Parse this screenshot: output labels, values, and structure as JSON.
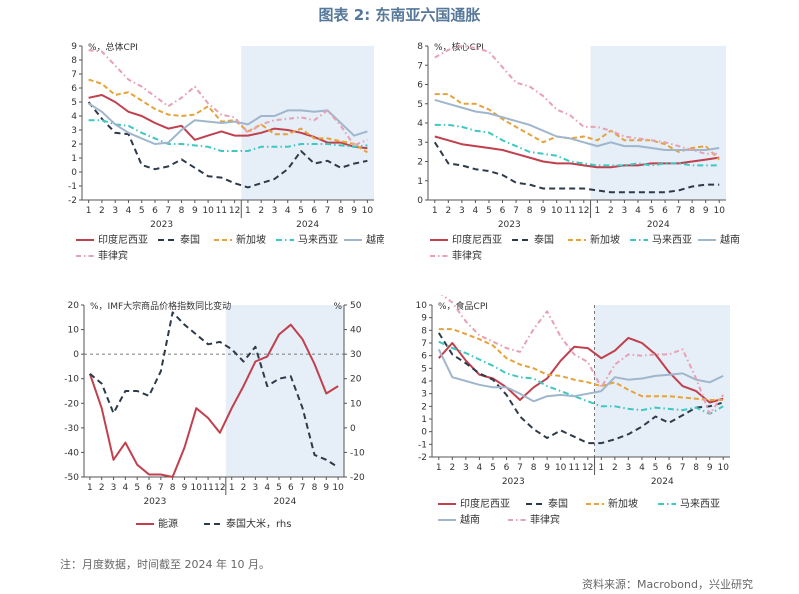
{
  "figure_title": "图表 2: 东南亚六国通胀",
  "note": "注：月度数据，时间截至 2024 年 10 月。",
  "source": "资料来源：Macrobond，兴业研究",
  "colors": {
    "indonesia": "#c0404d",
    "thailand": "#2d3a4a",
    "singapore": "#e6a23c",
    "malaysia": "#40c7c0",
    "vietnam": "#9fb6cc",
    "philippines": "#e6a1b4",
    "energy": "#c0404d",
    "rice": "#2d3a4a",
    "shade": "#e6eef7"
  },
  "chart_data": [
    {
      "type": "line",
      "title": "%，总体CPI",
      "x_ticks": [
        "1",
        "2",
        "3",
        "4",
        "5",
        "6",
        "7",
        "8",
        "9",
        "10",
        "11",
        "12",
        "1",
        "2",
        "3",
        "4",
        "5",
        "6",
        "7",
        "8",
        "9",
        "10"
      ],
      "year_labels": [
        "2023",
        "2024"
      ],
      "ylim": [
        -2,
        9
      ],
      "y_ticks": [
        -2,
        -1,
        0,
        1,
        2,
        3,
        4,
        5,
        6,
        7,
        8,
        9
      ],
      "shade_from_index": 12,
      "series": [
        {
          "name": "印度尼西亚",
          "key": "indonesia",
          "values": [
            5.3,
            5.5,
            5.0,
            4.3,
            4.0,
            3.5,
            3.1,
            3.3,
            2.3,
            2.6,
            2.9,
            2.6,
            2.6,
            2.8,
            3.1,
            3.0,
            2.8,
            2.5,
            2.1,
            2.1,
            1.8,
            1.7
          ]
        },
        {
          "name": "泰国",
          "key": "thailand",
          "values": [
            5.0,
            3.8,
            2.8,
            2.7,
            0.5,
            0.2,
            0.4,
            0.9,
            0.3,
            -0.3,
            -0.4,
            -0.8,
            -1.1,
            -0.8,
            -0.5,
            0.2,
            1.5,
            0.6,
            0.8,
            0.3,
            0.6,
            0.8
          ]
        },
        {
          "name": "新加坡",
          "key": "singapore",
          "values": [
            6.6,
            6.3,
            5.5,
            5.7,
            5.1,
            4.5,
            4.1,
            4.0,
            4.1,
            4.7,
            3.6,
            3.7,
            2.9,
            3.4,
            2.7,
            2.7,
            3.1,
            2.4,
            2.4,
            2.2,
            2.0,
            1.4
          ]
        },
        {
          "name": "马来西亚",
          "key": "malaysia",
          "values": [
            3.7,
            3.7,
            3.4,
            3.3,
            2.8,
            2.4,
            2.0,
            2.0,
            1.9,
            1.8,
            1.5,
            1.5,
            1.5,
            1.8,
            1.8,
            1.8,
            2.0,
            2.0,
            2.0,
            1.9,
            1.8,
            1.9
          ]
        },
        {
          "name": "越南",
          "key": "vietnam",
          "values": [
            4.9,
            4.3,
            3.4,
            2.8,
            2.4,
            2.0,
            2.1,
            3.0,
            3.7,
            3.6,
            3.5,
            3.6,
            3.4,
            4.0,
            4.0,
            4.4,
            4.4,
            4.3,
            4.4,
            3.5,
            2.6,
            2.9
          ]
        },
        {
          "name": "菲律宾",
          "key": "philippines",
          "values": [
            8.7,
            8.6,
            7.6,
            6.6,
            6.1,
            5.4,
            4.7,
            5.3,
            6.1,
            4.9,
            4.1,
            3.9,
            2.8,
            3.4,
            3.7,
            3.8,
            3.9,
            3.7,
            4.4,
            3.3,
            1.9,
            2.3
          ]
        }
      ]
    },
    {
      "type": "line",
      "title": "%，核心CPI",
      "x_ticks": [
        "1",
        "2",
        "3",
        "4",
        "5",
        "6",
        "7",
        "8",
        "9",
        "10",
        "11",
        "12",
        "1",
        "2",
        "3",
        "4",
        "5",
        "6",
        "7",
        "8",
        "9",
        "10"
      ],
      "year_labels": [
        "2023",
        "2024"
      ],
      "ylim": [
        0,
        8
      ],
      "y_ticks": [
        0,
        1,
        2,
        3,
        4,
        5,
        6,
        7,
        8
      ],
      "shade_from_index": 12,
      "series": [
        {
          "name": "印度尼西亚",
          "key": "indonesia",
          "values": [
            3.3,
            3.1,
            2.9,
            2.8,
            2.7,
            2.6,
            2.4,
            2.2,
            2.0,
            1.9,
            1.9,
            1.8,
            1.7,
            1.7,
            1.8,
            1.8,
            1.9,
            1.9,
            1.9,
            2.0,
            2.1,
            2.2
          ]
        },
        {
          "name": "泰国",
          "key": "thailand",
          "values": [
            3.0,
            1.9,
            1.8,
            1.6,
            1.5,
            1.3,
            0.9,
            0.8,
            0.6,
            0.6,
            0.6,
            0.6,
            0.5,
            0.4,
            0.4,
            0.4,
            0.4,
            0.4,
            0.5,
            0.7,
            0.8,
            0.8
          ]
        },
        {
          "name": "新加坡",
          "key": "singapore",
          "values": [
            5.5,
            5.5,
            5.0,
            5.0,
            4.7,
            4.2,
            3.8,
            3.4,
            3.0,
            3.3,
            3.2,
            3.3,
            3.1,
            3.6,
            3.1,
            3.1,
            3.1,
            2.9,
            2.5,
            2.7,
            2.8,
            2.1
          ]
        },
        {
          "name": "马来西亚",
          "key": "malaysia",
          "values": [
            3.9,
            3.9,
            3.8,
            3.6,
            3.5,
            3.1,
            2.8,
            2.5,
            2.4,
            2.3,
            2.0,
            1.9,
            1.8,
            1.8,
            1.8,
            1.9,
            1.8,
            1.9,
            1.9,
            1.8,
            1.8,
            1.8
          ]
        },
        {
          "name": "越南",
          "key": "vietnam",
          "values": [
            5.2,
            5.0,
            4.8,
            4.6,
            4.5,
            4.3,
            4.1,
            3.9,
            3.6,
            3.3,
            3.2,
            3.0,
            2.8,
            3.0,
            2.8,
            2.8,
            2.7,
            2.6,
            2.6,
            2.6,
            2.6,
            2.7
          ]
        },
        {
          "name": "菲律宾",
          "key": "philippines",
          "values": [
            7.4,
            7.8,
            8.0,
            7.9,
            7.7,
            6.9,
            6.1,
            5.9,
            5.4,
            4.7,
            4.4,
            3.8,
            3.8,
            3.6,
            3.3,
            3.2,
            3.1,
            3.0,
            2.8,
            2.6,
            2.4,
            2.4
          ]
        }
      ]
    },
    {
      "type": "line",
      "title": "%，IMF大宗商品价格指数同比变动",
      "rhs_label": "%",
      "x_ticks": [
        "1",
        "2",
        "3",
        "4",
        "5",
        "6",
        "7",
        "8",
        "9",
        "10",
        "11",
        "12",
        "1",
        "2",
        "3",
        "4",
        "5",
        "6",
        "7",
        "8",
        "9",
        "10"
      ],
      "year_labels": [
        "2023",
        "2024"
      ],
      "ylim": [
        -50,
        20
      ],
      "y_ticks": [
        20,
        10,
        0,
        -10,
        -20,
        -30,
        -40,
        -50
      ],
      "ylim_rhs": [
        -20,
        50
      ],
      "y_ticks_rhs": [
        50,
        40,
        30,
        20,
        10,
        0,
        -10,
        -20
      ],
      "zero_line": 0,
      "shade_from_index": 12,
      "series": [
        {
          "name": "能源",
          "key": "energy",
          "axis": "left",
          "values": [
            -8,
            -22,
            -43,
            -36,
            -45,
            -49,
            -49,
            -50,
            -38,
            -22,
            -26,
            -32,
            -22,
            -13,
            -3,
            -1,
            8,
            12,
            6,
            -4,
            -16,
            -13
          ]
        },
        {
          "name": "泰国大米，rhs",
          "key": "rice",
          "axis": "right",
          "values": [
            22,
            18,
            6,
            15,
            15,
            13,
            23,
            47,
            42,
            38,
            34,
            35,
            32,
            27,
            33,
            17,
            20,
            21,
            8,
            -11,
            -13,
            -16
          ]
        }
      ]
    },
    {
      "type": "line",
      "title": "%，食品CPI",
      "x_ticks": [
        "1",
        "2",
        "3",
        "4",
        "5",
        "6",
        "7",
        "8",
        "9",
        "10",
        "11",
        "12",
        "1",
        "2",
        "3",
        "4",
        "5",
        "6",
        "7",
        "8",
        "9",
        "10"
      ],
      "year_labels": [
        "2023",
        "2024"
      ],
      "ylim": [
        -2,
        10
      ],
      "y_ticks": [
        -2,
        -1,
        0,
        1,
        2,
        3,
        4,
        5,
        6,
        7,
        8,
        9,
        10
      ],
      "vline_index": 11,
      "shade_from_index": 12,
      "series": [
        {
          "name": "印度尼西亚",
          "key": "indonesia",
          "values": [
            5.8,
            7.0,
            5.6,
            4.5,
            4.2,
            3.5,
            2.5,
            3.5,
            4.2,
            5.6,
            6.7,
            6.6,
            5.8,
            6.4,
            7.4,
            7.0,
            6.1,
            4.7,
            3.6,
            3.2,
            2.3,
            2.6
          ]
        },
        {
          "name": "泰国",
          "key": "thailand",
          "values": [
            7.8,
            6.1,
            5.4,
            4.6,
            4.1,
            2.9,
            1.2,
            0.2,
            -0.5,
            0.1,
            -0.4,
            -0.9,
            -0.9,
            -0.6,
            -0.2,
            0.4,
            1.2,
            0.7,
            1.3,
            1.9,
            2.0,
            2.3
          ]
        },
        {
          "name": "新加坡",
          "key": "singapore",
          "values": [
            8.1,
            8.1,
            7.7,
            7.3,
            6.8,
            5.8,
            5.3,
            5.0,
            4.5,
            4.4,
            4.1,
            3.9,
            3.6,
            3.9,
            3.3,
            2.8,
            2.8,
            2.8,
            2.7,
            2.6,
            2.5,
            2.5
          ]
        },
        {
          "name": "马来西亚",
          "key": "malaysia",
          "values": [
            7.1,
            6.6,
            6.2,
            5.7,
            5.2,
            4.6,
            4.3,
            4.2,
            3.6,
            3.2,
            2.8,
            2.4,
            2.0,
            2.0,
            1.8,
            1.7,
            1.9,
            1.8,
            1.7,
            1.9,
            1.4,
            2.0
          ]
        },
        {
          "name": "越南",
          "key": "vietnam",
          "values": [
            6.5,
            4.3,
            4.0,
            3.7,
            3.5,
            3.5,
            3.0,
            2.4,
            2.8,
            2.9,
            2.8,
            3.0,
            3.2,
            4.3,
            4.1,
            4.2,
            4.4,
            4.5,
            4.6,
            4.1,
            3.9,
            4.4
          ]
        },
        {
          "name": "菲律宾",
          "key": "philippines",
          "values": [
            11.0,
            10.2,
            8.7,
            7.6,
            7.1,
            6.6,
            6.3,
            8.1,
            9.5,
            7.5,
            6.1,
            5.5,
            3.5,
            5.3,
            6.1,
            6.0,
            6.1,
            6.1,
            6.5,
            4.2,
            1.4,
            2.9
          ]
        }
      ]
    }
  ]
}
